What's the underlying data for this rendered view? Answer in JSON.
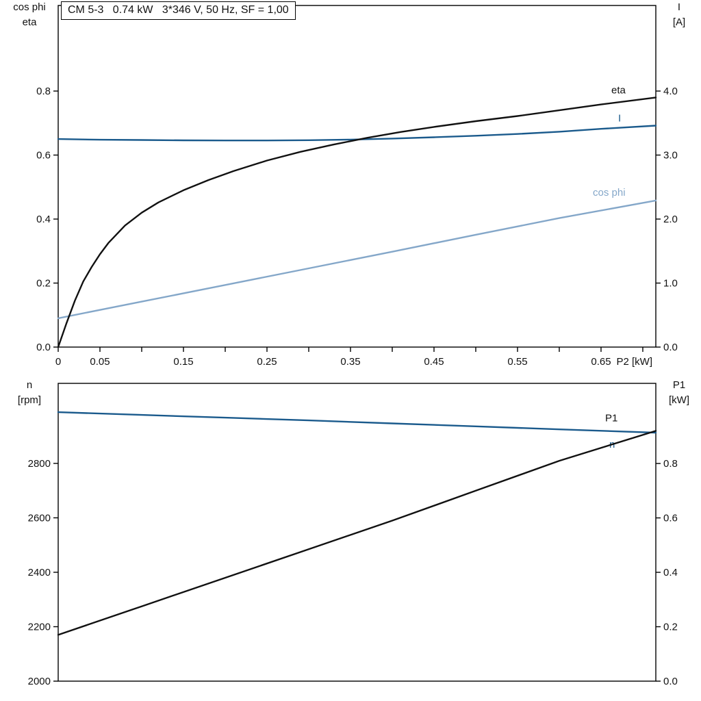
{
  "figure": {
    "title": "CM 5-3   0.74 kW   3*346 V, 50 Hz, SF = 1,00"
  },
  "colors": {
    "axis": "#000000",
    "black": "#111111",
    "dark_blue": "#1a5a8c",
    "light_blue": "#84a7c9"
  },
  "chart_data": [
    {
      "type": "line",
      "title": "CM 5-3   0.74 kW   3*346 V, 50 Hz, SF = 1,00",
      "grid": false,
      "x_axis": {
        "label": "P2 [kW]",
        "min": 0,
        "max": 0.7156,
        "ticks": [
          0,
          0.05,
          0.1,
          0.15,
          0.2,
          0.25,
          0.3,
          0.35,
          0.4,
          0.45,
          0.5,
          0.55,
          0.6,
          0.65,
          0.7
        ],
        "tick_labels": [
          {
            "v": 0,
            "t": "0"
          },
          {
            "v": 0.05,
            "t": "0.05"
          },
          {
            "v": 0.15,
            "t": "0.15"
          },
          {
            "v": 0.25,
            "t": "0.25"
          },
          {
            "v": 0.35,
            "t": "0.35"
          },
          {
            "v": 0.45,
            "t": "0.45"
          },
          {
            "v": 0.55,
            "t": "0.55"
          },
          {
            "v": 0.65,
            "t": "0.65"
          }
        ]
      },
      "left_axis": {
        "title_lines": [
          "cos phi",
          "eta"
        ],
        "min": 0,
        "max": 1.0674,
        "ticks": [
          {
            "v": 0.0,
            "t": "0.0"
          },
          {
            "v": 0.2,
            "t": "0.2"
          },
          {
            "v": 0.4,
            "t": "0.4"
          },
          {
            "v": 0.6,
            "t": "0.6"
          },
          {
            "v": 0.8,
            "t": "0.8"
          }
        ]
      },
      "right_axis": {
        "title_lines": [
          "I",
          "[A]"
        ],
        "min": 0,
        "max": 5.337,
        "ticks": [
          {
            "v": 0.0,
            "t": "0.0"
          },
          {
            "v": 1.0,
            "t": "1.0"
          },
          {
            "v": 2.0,
            "t": "2.0"
          },
          {
            "v": 3.0,
            "t": "3.0"
          },
          {
            "v": 4.0,
            "t": "4.0"
          }
        ]
      },
      "series": [
        {
          "name": "cos-phi",
          "axis": "left",
          "color": "#84a7c9",
          "label": {
            "text": "cos phi",
            "dx": -92,
            "dy": -7
          },
          "points": [
            [
              0,
              0.09
            ],
            [
              0.1,
              0.142
            ],
            [
              0.2,
              0.194
            ],
            [
              0.3,
              0.246
            ],
            [
              0.4,
              0.298
            ],
            [
              0.5,
              0.351
            ],
            [
              0.6,
              0.403
            ],
            [
              0.7156,
              0.458
            ]
          ]
        },
        {
          "name": "current",
          "axis": "right",
          "color": "#1a5a8c",
          "label": {
            "text": "I",
            "dx": -55,
            "dy": -6
          },
          "points": [
            [
              0,
              3.25
            ],
            [
              0.05,
              3.24
            ],
            [
              0.1,
              3.235
            ],
            [
              0.15,
              3.23
            ],
            [
              0.2,
              3.228
            ],
            [
              0.25,
              3.228
            ],
            [
              0.3,
              3.232
            ],
            [
              0.35,
              3.242
            ],
            [
              0.4,
              3.258
            ],
            [
              0.45,
              3.278
            ],
            [
              0.5,
              3.302
            ],
            [
              0.55,
              3.33
            ],
            [
              0.6,
              3.365
            ],
            [
              0.65,
              3.41
            ],
            [
              0.7156,
              3.46
            ]
          ]
        },
        {
          "name": "eta",
          "axis": "left",
          "color": "#111111",
          "label": {
            "text": "eta",
            "dx": -65,
            "dy": -6
          },
          "points": [
            [
              0,
              0
            ],
            [
              0.01,
              0.075
            ],
            [
              0.02,
              0.145
            ],
            [
              0.03,
              0.205
            ],
            [
              0.04,
              0.25
            ],
            [
              0.05,
              0.29
            ],
            [
              0.06,
              0.325
            ],
            [
              0.08,
              0.38
            ],
            [
              0.1,
              0.42
            ],
            [
              0.12,
              0.452
            ],
            [
              0.15,
              0.49
            ],
            [
              0.18,
              0.522
            ],
            [
              0.21,
              0.55
            ],
            [
              0.25,
              0.583
            ],
            [
              0.29,
              0.61
            ],
            [
              0.33,
              0.633
            ],
            [
              0.37,
              0.654
            ],
            [
              0.41,
              0.672
            ],
            [
              0.45,
              0.688
            ],
            [
              0.5,
              0.706
            ],
            [
              0.55,
              0.722
            ],
            [
              0.6,
              0.74
            ],
            [
              0.65,
              0.758
            ],
            [
              0.7156,
              0.78
            ]
          ]
        }
      ]
    },
    {
      "type": "line",
      "title": "",
      "grid": false,
      "x_axis": {
        "label": "",
        "min": 0,
        "max": 0.7156,
        "ticks": [],
        "tick_labels": []
      },
      "left_axis": {
        "title_lines": [
          "n",
          "[rpm]"
        ],
        "min": 2000,
        "max": 3094,
        "ticks": [
          {
            "v": 2000,
            "t": "2000"
          },
          {
            "v": 2200,
            "t": "2200"
          },
          {
            "v": 2400,
            "t": "2400"
          },
          {
            "v": 2600,
            "t": "2600"
          },
          {
            "v": 2800,
            "t": "2800"
          }
        ]
      },
      "right_axis": {
        "title_lines": [
          "P1",
          "[kW]"
        ],
        "min": 0,
        "max": 1.0945,
        "ticks": [
          {
            "v": 0.0,
            "t": "0.0"
          },
          {
            "v": 0.2,
            "t": "0.2"
          },
          {
            "v": 0.4,
            "t": "0.4"
          },
          {
            "v": 0.6,
            "t": "0.6"
          },
          {
            "v": 0.8,
            "t": "0.8"
          }
        ]
      },
      "series": [
        {
          "name": "speed",
          "axis": "left",
          "color": "#1a5a8c",
          "label": {
            "text": "n",
            "dx": -68,
            "dy": 22
          },
          "points": [
            [
              0,
              2988
            ],
            [
              0.1,
              2978
            ],
            [
              0.2,
              2968
            ],
            [
              0.3,
              2958
            ],
            [
              0.4,
              2947
            ],
            [
              0.5,
              2936
            ],
            [
              0.6,
              2925
            ],
            [
              0.7156,
              2913
            ]
          ]
        },
        {
          "name": "p1",
          "axis": "right",
          "color": "#111111",
          "label": {
            "text": "P1",
            "dx": -74,
            "dy": -14
          },
          "points": [
            [
              0,
              0.17
            ],
            [
              0.1,
              0.275
            ],
            [
              0.2,
              0.38
            ],
            [
              0.3,
              0.485
            ],
            [
              0.4,
              0.59
            ],
            [
              0.5,
              0.7
            ],
            [
              0.6,
              0.81
            ],
            [
              0.7156,
              0.92
            ]
          ]
        }
      ]
    }
  ]
}
